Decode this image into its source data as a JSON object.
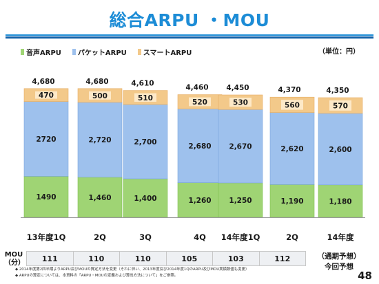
{
  "title": "総合ARPU ・MOU",
  "unit_label": "（単位：円）",
  "legend": [
    {
      "label": "音声ARPU",
      "color": "#9fd474"
    },
    {
      "label": "パケットARPU",
      "color": "#9ec1ed"
    },
    {
      "label": "スマートARPU",
      "color": "#f3c98a"
    }
  ],
  "chart_data": {
    "type": "bar",
    "stacked": true,
    "categories": [
      "13年度1Q",
      "2Q",
      "3Q",
      "4Q",
      "14年度1Q",
      "2Q",
      "14年度\n（通期予想）\n今回予想"
    ],
    "ylabel": "",
    "series": [
      {
        "name": "音声ARPU",
        "values": [
          1490,
          1460,
          1400,
          1260,
          1250,
          1190,
          1180
        ],
        "labels": [
          "1490",
          "1,460",
          "1,400",
          "1,260",
          "1,250",
          "1,190",
          "1,180"
        ]
      },
      {
        "name": "パケットARPU",
        "values": [
          2720,
          2720,
          2700,
          2680,
          2670,
          2620,
          2600
        ],
        "labels": [
          "2720",
          "2,720",
          "2,700",
          "2,680",
          "2,670",
          "2,620",
          "2,600"
        ]
      },
      {
        "name": "スマートARPU",
        "values": [
          470,
          500,
          510,
          520,
          530,
          560,
          570
        ],
        "labels": [
          "470",
          "500",
          "510",
          "520",
          "530",
          "560",
          "570"
        ]
      }
    ],
    "totals": [
      "4,680",
      "4,680",
      "4,610",
      "4,460",
      "4,450",
      "4,370",
      "4,350"
    ],
    "tick_labels": [
      "13年度1Q",
      "2Q",
      "3Q",
      "4Q",
      "14年度1Q",
      "2Q",
      "14年度"
    ],
    "legend_position": "top-left"
  },
  "mou": {
    "label_line1": "MOU",
    "label_line2": "（分）",
    "values": [
      "111",
      "110",
      "110",
      "105",
      "103",
      "112"
    ]
  },
  "forecast_label": {
    "line1": "（通期予想）",
    "line2": "今回予想"
  },
  "notes": [
    "◆ 2014年度第2四半期よりARPU及びMOUの算定方法を変更（それに伴い、2013年度及び2014年度1QのARPU及びMOU実績数値も変更）",
    "◆ ARPUの算定については、本資料の「ARPU・MOUの定義および算出方法について」をご参照。"
  ],
  "page_number": "48"
}
